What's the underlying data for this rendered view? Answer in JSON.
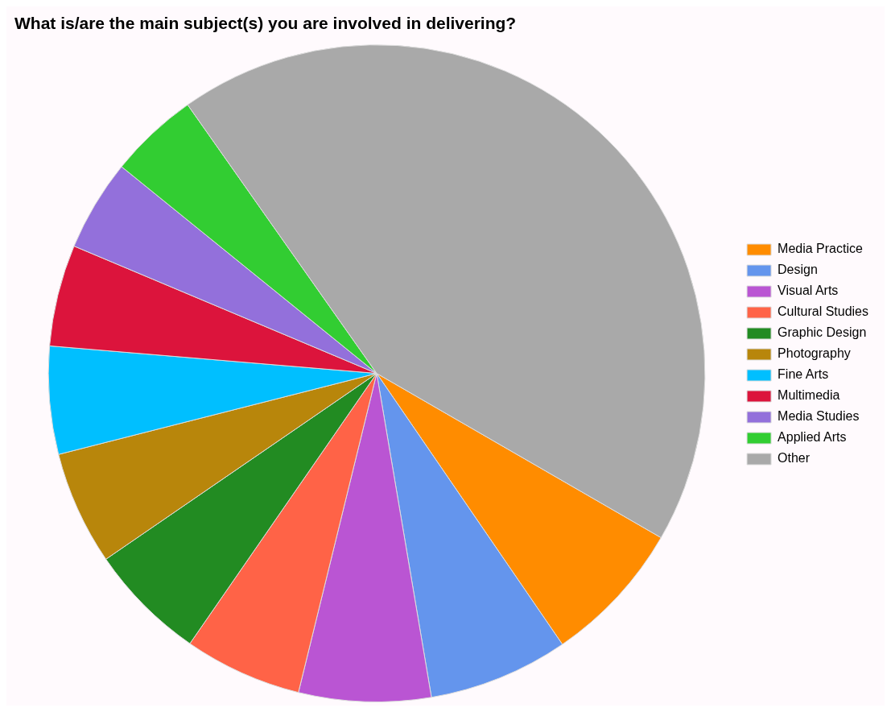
{
  "chart_data": {
    "type": "pie",
    "title": "What is/are the main subject(s) you are involved in delivering?",
    "categories": [
      "Media Practice",
      "Design",
      "Visual Arts",
      "Cultural Studies",
      "Graphic Design",
      "Photography",
      "Fine Arts",
      "Multimedia",
      "Media Studies",
      "Applied Arts",
      "Other"
    ],
    "values": [
      7.1,
      6.9,
      6.5,
      5.8,
      5.8,
      5.6,
      5.3,
      5.0,
      4.5,
      4.4,
      43.1
    ],
    "colors": [
      "#ff8c00",
      "#6495ed",
      "#ba55d3",
      "#ff6347",
      "#228b22",
      "#b8860b",
      "#00bfff",
      "#dc143c",
      "#9370db",
      "#32cd32",
      "#a9a9a9"
    ],
    "legend": "right"
  }
}
